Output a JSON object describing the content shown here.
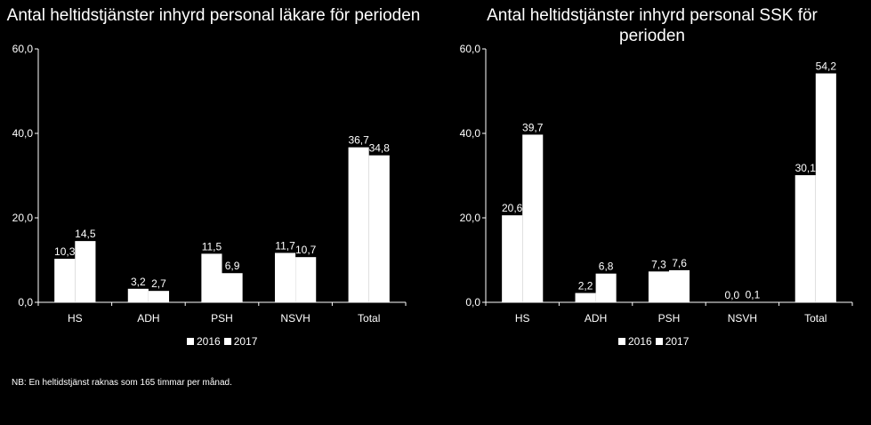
{
  "charts": [
    {
      "title": "Antal heltidstjänster inhyrd personal läkare för perioden",
      "ytick_labels": [
        "60,0",
        "40,0",
        "20,0",
        "0,0"
      ],
      "legend": [
        "2016",
        "2017"
      ]
    },
    {
      "title": "Antal heltidstjänster inhyrd personal SSK för perioden",
      "ytick_labels": [
        "60,0",
        "40,0",
        "20,0",
        "0,0"
      ],
      "legend": [
        "2016",
        "2017"
      ]
    }
  ],
  "note": "NB: En heltidstjänst  raknas som 165 timmar per månad.",
  "colors": {
    "bars": "#ffffff",
    "background": "#000000",
    "axes": "#ffffff"
  },
  "chart_data": [
    {
      "type": "bar",
      "title": "Antal heltidstjänster inhyrd personal läkare för perioden",
      "categories": [
        "HS",
        "ADH",
        "PSH",
        "NSVH",
        "Total"
      ],
      "series": [
        {
          "name": "2016",
          "values": [
            10.3,
            3.2,
            11.5,
            11.7,
            36.7
          ],
          "labels": [
            "10,3",
            "3,2",
            "11,5",
            "11,7",
            "36,7"
          ]
        },
        {
          "name": "2017",
          "values": [
            14.5,
            2.7,
            6.9,
            10.7,
            34.8
          ],
          "labels": [
            "14,5",
            "2,7",
            "6,9",
            "10,7",
            "34,8"
          ]
        }
      ],
      "ylim": [
        0,
        60
      ],
      "yticks": [
        0,
        20,
        40,
        60
      ],
      "grid": false,
      "legend_position": "bottom"
    },
    {
      "type": "bar",
      "title": "Antal heltidstjänster inhyrd personal SSK för perioden",
      "categories": [
        "HS",
        "ADH",
        "PSH",
        "NSVH",
        "Total"
      ],
      "series": [
        {
          "name": "2016",
          "values": [
            20.6,
            2.2,
            7.3,
            0.0,
            30.1
          ],
          "labels": [
            "20,6",
            "2,2",
            "7,3",
            "0,0",
            "30,1"
          ]
        },
        {
          "name": "2017",
          "values": [
            39.7,
            6.8,
            7.6,
            0.1,
            54.2
          ],
          "labels": [
            "39,7",
            "6,8",
            "7,6",
            "0,1",
            "54,2"
          ]
        }
      ],
      "ylim": [
        0,
        60
      ],
      "yticks": [
        0,
        20,
        40,
        60
      ],
      "grid": false,
      "legend_position": "bottom"
    }
  ]
}
